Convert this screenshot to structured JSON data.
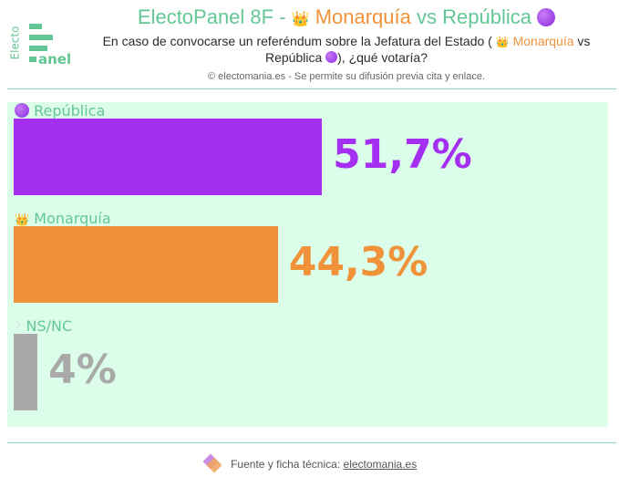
{
  "header": {
    "logo_vertical": "Electo",
    "logo_horizontal": "anel",
    "title_prefix": "ElectoPanel 8F -",
    "title_mon": "Monarquía",
    "title_vs": "vs",
    "title_rep": "República",
    "subtitle_line1": "En caso de convocarse un referéndum sobre la Jefatura del Estado (",
    "subtitle_mon": "Monarquía",
    "subtitle_vs": "vs",
    "subtitle_line2a": "República",
    "subtitle_line2b": "), ¿qué votaría?",
    "copyright": "© electomania.es - Se permite su difusión previa cita y enlace."
  },
  "footer": {
    "text": "Fuente y ficha técnica:",
    "link": "electomania.es"
  },
  "icons": {
    "crown": "crown-emoji",
    "republic": "purple-circle-emoji",
    "nsnc": "question-mark-icon"
  },
  "chart_data": {
    "type": "bar",
    "orientation": "horizontal",
    "categories": [
      "República",
      "Monarquía",
      "NS/NC"
    ],
    "values": [
      51.7,
      44.3,
      4
    ],
    "value_labels": [
      "51,7%",
      "44,3%",
      "4%"
    ],
    "colors": [
      "#a52ff0",
      "#f0923a",
      "#a9a9a9"
    ],
    "xlim": [
      0,
      100
    ],
    "grid": false,
    "legend": "none",
    "title": "ElectoPanel 8F - Monarquía vs República"
  }
}
